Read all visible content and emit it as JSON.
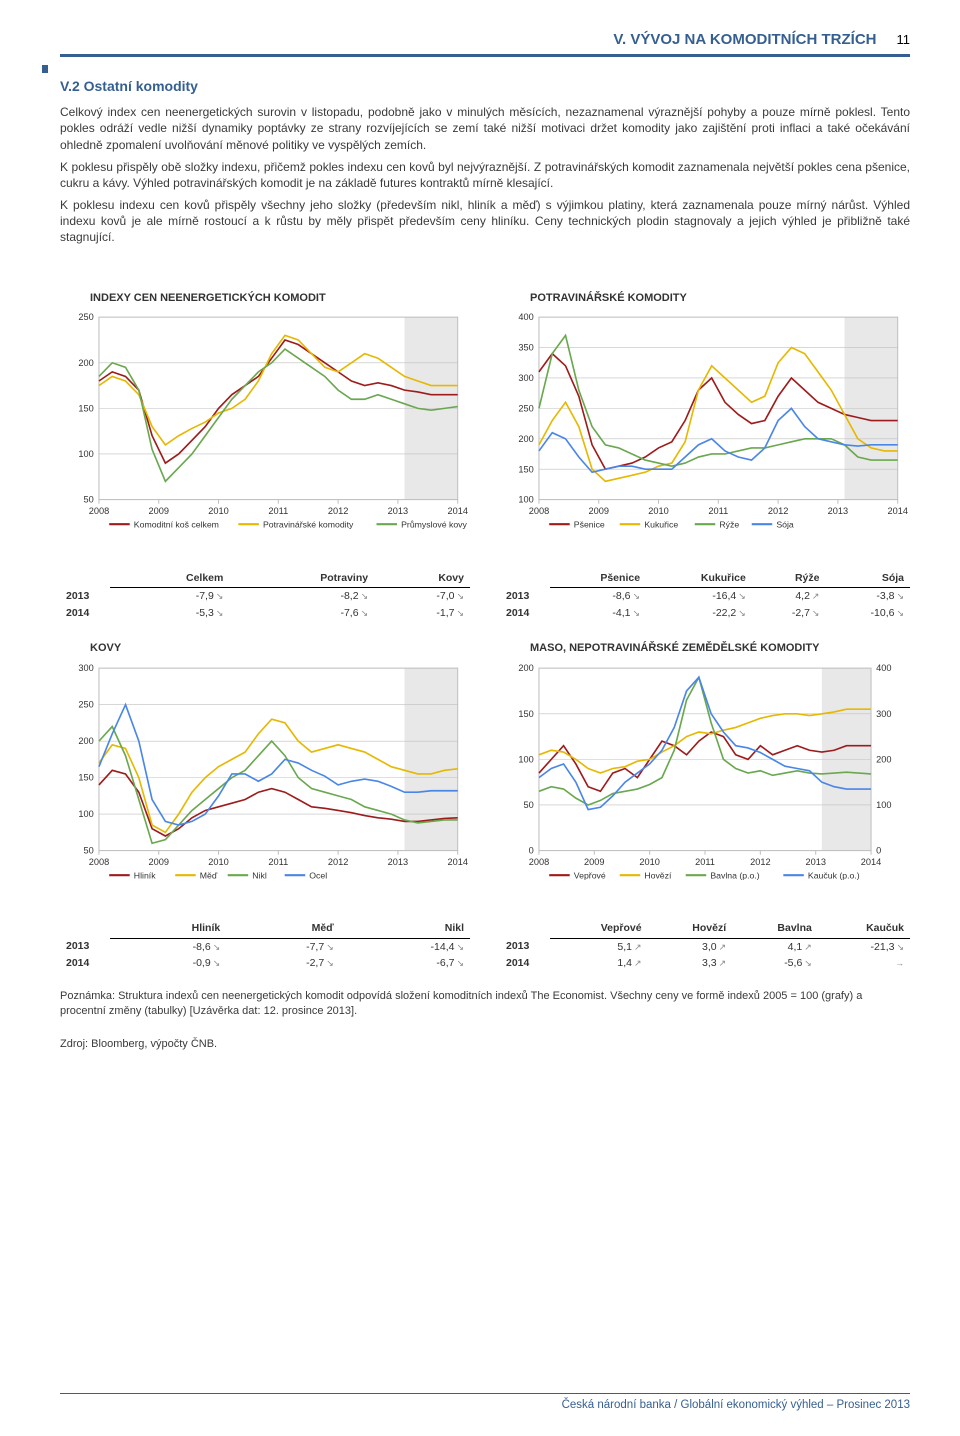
{
  "header": {
    "section_label": "V. VÝVOJ NA KOMODITNÍCH TRZÍCH",
    "page_number": "11"
  },
  "subsection": {
    "number": "V.2",
    "title": "Ostatní komodity"
  },
  "paragraphs": [
    "Celkový index cen neenergetických surovin v listopadu, podobně jako v minulých měsících, nezaznamenal výraznější pohyby a pouze mírně poklesl. Tento pokles odráží vedle nižší dynamiky poptávky ze strany rozvíjejících se zemí také nižší motivaci držet komodity jako zajištění proti inflaci a také očekávání ohledně zpomalení uvolňování měnové politiky ve vyspělých zemích.",
    "K poklesu přispěly obě složky indexu, přičemž pokles indexu cen kovů byl nejvýraznější. Z potravinářských komodit zaznamenala největší pokles cena pšenice, cukru a kávy. Výhled potravinářských komodit je na základě futures kontraktů mírně klesající.",
    "K poklesu indexu cen kovů přispěly všechny jeho složky (především nikl, hliník a měď) s výjimkou platiny, která zaznamenala pouze mírný nárůst. Výhled indexu kovů je ale mírně rostoucí a k růstu by měly přispět především ceny hliníku. Ceny technických plodin stagnovaly a jejich výhled je přibližně také stagnující."
  ],
  "colors": {
    "accent": "#365f91",
    "dark_red": "#9e1b1b",
    "gold": "#e6b800",
    "bright_yellow": "#ffcc00",
    "green": "#6aa84f",
    "dark_green": "#2a7a2a",
    "blue": "#4a86e8",
    "grid": "#bfbfbf",
    "shade": "#e8e8e8",
    "text": "#3a3a3a"
  },
  "chart1": {
    "title": "INDEXY CEN NEENERGETICKÝCH KOMODIT",
    "type": "line",
    "ylim": [
      50,
      250
    ],
    "ytick_step": 50,
    "xlabels": [
      "2008",
      "2009",
      "2010",
      "2011",
      "2012",
      "2013",
      "2014"
    ],
    "legend": [
      "Komoditní koš celkem",
      "Potravinářské komodity",
      "Průmyslové kovy"
    ],
    "legend_colors": [
      "#9e1b1b",
      "#e6b800",
      "#6aa84f"
    ],
    "series": {
      "celkem": [
        180,
        190,
        185,
        170,
        120,
        90,
        100,
        115,
        130,
        150,
        165,
        175,
        185,
        205,
        225,
        220,
        210,
        200,
        190,
        180,
        175,
        178,
        175,
        170,
        168,
        165,
        165,
        165
      ],
      "potraviny": [
        175,
        185,
        180,
        165,
        130,
        110,
        120,
        128,
        135,
        145,
        150,
        160,
        180,
        210,
        230,
        225,
        210,
        195,
        190,
        200,
        210,
        205,
        195,
        185,
        180,
        175,
        175,
        175
      ],
      "kovy": [
        185,
        200,
        195,
        170,
        105,
        70,
        85,
        100,
        120,
        140,
        160,
        175,
        190,
        200,
        215,
        205,
        195,
        185,
        170,
        160,
        160,
        165,
        160,
        155,
        150,
        148,
        150,
        152
      ]
    },
    "forecast_start_index": 23
  },
  "chart2": {
    "title": "POTRAVINÁŘSKÉ KOMODITY",
    "type": "line",
    "ylim": [
      100,
      400
    ],
    "ytick_step": 50,
    "xlabels": [
      "2008",
      "2009",
      "2010",
      "2011",
      "2012",
      "2013",
      "2014"
    ],
    "legend": [
      "Pšenice",
      "Kukuřice",
      "Rýže",
      "Sója"
    ],
    "legend_colors": [
      "#9e1b1b",
      "#e6b800",
      "#6aa84f",
      "#4a86e8"
    ],
    "series": {
      "psenice": [
        310,
        340,
        320,
        270,
        190,
        150,
        155,
        160,
        170,
        185,
        195,
        230,
        280,
        300,
        260,
        240,
        225,
        230,
        270,
        300,
        280,
        260,
        250,
        240,
        235,
        230,
        230,
        230
      ],
      "kukurice": [
        190,
        230,
        260,
        220,
        150,
        130,
        135,
        140,
        145,
        155,
        160,
        195,
        280,
        320,
        300,
        280,
        260,
        270,
        325,
        350,
        340,
        310,
        280,
        240,
        200,
        185,
        180,
        180
      ],
      "ryze": [
        250,
        340,
        370,
        280,
        220,
        190,
        185,
        175,
        165,
        160,
        155,
        160,
        170,
        175,
        175,
        180,
        185,
        185,
        190,
        195,
        200,
        200,
        200,
        190,
        170,
        165,
        165,
        165
      ],
      "soja": [
        180,
        210,
        200,
        170,
        145,
        150,
        155,
        155,
        150,
        150,
        150,
        170,
        190,
        200,
        180,
        170,
        165,
        185,
        230,
        250,
        220,
        200,
        195,
        190,
        188,
        190,
        190,
        190
      ]
    },
    "forecast_start_index": 23
  },
  "chart3": {
    "title": "KOVY",
    "type": "line",
    "ylim": [
      50,
      300
    ],
    "ytick_step": 50,
    "xlabels": [
      "2008",
      "2009",
      "2010",
      "2011",
      "2012",
      "2013",
      "2014"
    ],
    "legend": [
      "Hliník",
      "Měď",
      "Nikl",
      "Ocel"
    ],
    "legend_colors": [
      "#9e1b1b",
      "#e6b800",
      "#6aa84f",
      "#4a86e8"
    ],
    "series": {
      "hlinik": [
        140,
        160,
        155,
        130,
        80,
        70,
        80,
        95,
        105,
        110,
        115,
        120,
        130,
        135,
        130,
        120,
        110,
        108,
        105,
        102,
        98,
        95,
        93,
        90,
        90,
        92,
        94,
        95
      ],
      "med": [
        170,
        195,
        190,
        150,
        85,
        75,
        100,
        130,
        150,
        165,
        175,
        185,
        210,
        230,
        225,
        200,
        185,
        190,
        195,
        190,
        185,
        175,
        165,
        160,
        155,
        155,
        160,
        162
      ],
      "nikl": [
        200,
        220,
        180,
        120,
        60,
        65,
        85,
        105,
        120,
        135,
        150,
        160,
        180,
        200,
        180,
        150,
        135,
        130,
        125,
        120,
        110,
        105,
        100,
        92,
        88,
        90,
        92,
        92
      ],
      "ocel": [
        165,
        210,
        250,
        200,
        120,
        90,
        85,
        90,
        100,
        125,
        155,
        155,
        145,
        155,
        175,
        170,
        160,
        152,
        140,
        145,
        148,
        145,
        138,
        130,
        130,
        132,
        132,
        132
      ]
    },
    "forecast_start_index": 23
  },
  "chart4": {
    "title": "MASO, NEPOTRAVINÁŘSKÉ ZEMĚDĚLSKÉ KOMODITY",
    "type": "line-dual",
    "left": {
      "ylim": [
        0,
        200
      ],
      "ytick_step": 50
    },
    "right": {
      "ylim": [
        0,
        400
      ],
      "ytick_step": 100
    },
    "xlabels": [
      "2008",
      "2009",
      "2010",
      "2011",
      "2012",
      "2013",
      "2014"
    ],
    "legend": [
      "Vepřové",
      "Hovězí",
      "Bavlna (p.o.)",
      "Kaučuk (p.o.)"
    ],
    "legend_colors": [
      "#9e1b1b",
      "#e6b800",
      "#6aa84f",
      "#4a86e8"
    ],
    "series_left": {
      "veprove": [
        85,
        100,
        115,
        95,
        70,
        65,
        85,
        90,
        80,
        100,
        120,
        115,
        105,
        120,
        130,
        125,
        105,
        100,
        115,
        105,
        110,
        115,
        110,
        108,
        110,
        115,
        115,
        115
      ],
      "hovezi": [
        105,
        110,
        108,
        100,
        90,
        85,
        90,
        92,
        98,
        100,
        108,
        115,
        125,
        130,
        128,
        132,
        135,
        140,
        145,
        148,
        150,
        150,
        148,
        150,
        152,
        155,
        155,
        155
      ]
    },
    "series_right": {
      "bavlna": [
        130,
        140,
        135,
        115,
        100,
        110,
        125,
        130,
        135,
        145,
        160,
        220,
        330,
        380,
        280,
        200,
        180,
        170,
        175,
        165,
        170,
        175,
        170,
        168,
        170,
        172,
        170,
        168
      ],
      "kaucuk": [
        160,
        180,
        190,
        150,
        90,
        95,
        120,
        150,
        170,
        190,
        220,
        270,
        350,
        380,
        300,
        260,
        230,
        225,
        215,
        200,
        185,
        180,
        175,
        150,
        140,
        135,
        135,
        135
      ]
    },
    "forecast_start_index": 23
  },
  "table1": {
    "headers": [
      "Celkem",
      "Potraviny",
      "Kovy"
    ],
    "rows": [
      {
        "year": "2013",
        "vals": [
          "-7,9",
          "-8,2",
          "-7,0"
        ],
        "arrows": [
          "↘",
          "↘",
          "↘"
        ]
      },
      {
        "year": "2014",
        "vals": [
          "-5,3",
          "-7,6",
          "-1,7"
        ],
        "arrows": [
          "↘",
          "↘",
          "↘"
        ]
      }
    ]
  },
  "table2": {
    "headers": [
      "Pšenice",
      "Kukuřice",
      "Rýže",
      "Sója"
    ],
    "rows": [
      {
        "year": "2013",
        "vals": [
          "-8,6",
          "-16,4",
          "4,2",
          "-3,8"
        ],
        "arrows": [
          "↘",
          "↘",
          "↗",
          "↘"
        ]
      },
      {
        "year": "2014",
        "vals": [
          "-4,1",
          "-22,2",
          "-2,7",
          "-10,6"
        ],
        "arrows": [
          "↘",
          "↘",
          "↘",
          "↘"
        ]
      }
    ]
  },
  "table3": {
    "headers": [
      "Hliník",
      "Měď",
      "Nikl"
    ],
    "rows": [
      {
        "year": "2013",
        "vals": [
          "-8,6",
          "-7,7",
          "-14,4"
        ],
        "arrows": [
          "↘",
          "↘",
          "↘"
        ]
      },
      {
        "year": "2014",
        "vals": [
          "-0,9",
          "-2,7",
          "-6,7"
        ],
        "arrows": [
          "↘",
          "↘",
          "↘"
        ]
      }
    ]
  },
  "table4": {
    "headers": [
      "Vepřové",
      "Hovězí",
      "Bavlna",
      "Kaučuk"
    ],
    "rows": [
      {
        "year": "2013",
        "vals": [
          "5,1",
          "3,0",
          "4,1",
          "-21,3"
        ],
        "arrows": [
          "↗",
          "↗",
          "↗",
          "↘"
        ]
      },
      {
        "year": "2014",
        "vals": [
          "1,4",
          "3,3",
          "-5,6",
          ""
        ],
        "arrows": [
          "↗",
          "↗",
          "↘",
          "→"
        ]
      }
    ]
  },
  "footnote": "Poznámka: Struktura indexů cen neenergetických komodit odpovídá složení komoditních indexů The Economist. Všechny ceny ve formě indexů 2005 = 100 (grafy) a procentní změny (tabulky) [Uzávěrka dat: 12. prosince 2013].",
  "source": "Zdroj: Bloomberg, výpočty ČNB.",
  "footer": "Česká národní banka / Globální ekonomický výhled – Prosinec 2013"
}
